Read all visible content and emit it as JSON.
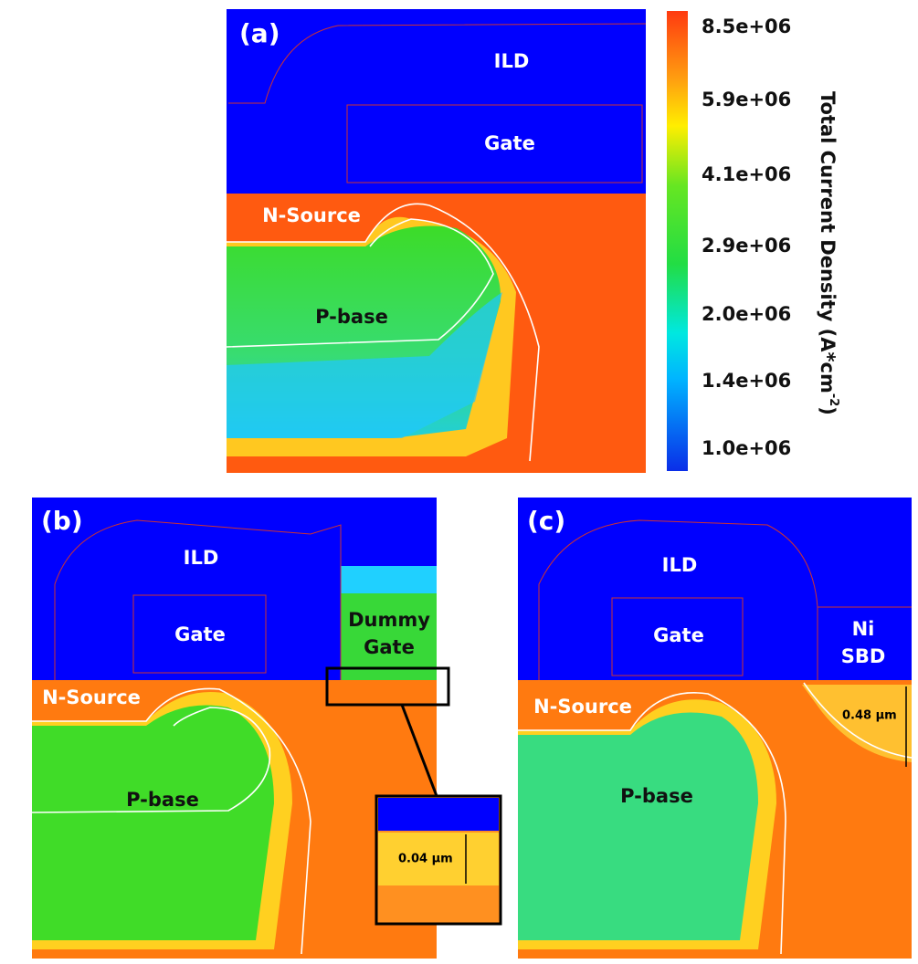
{
  "panels": [
    {
      "label": "(a)",
      "ild": "ILD",
      "gate": "Gate",
      "source": "N-Source",
      "base": "P-base"
    },
    {
      "label": "(b)",
      "ild": "ILD",
      "gate": "Gate",
      "extra": [
        "Dummy",
        "Gate"
      ],
      "source": "N-Source",
      "base": "P-base",
      "dimension": "0.04 μm"
    },
    {
      "label": "(c)",
      "ild": "ILD",
      "gate": "Gate",
      "extra": [
        "Ni",
        "SBD"
      ],
      "source": "N-Source",
      "base": "P-base",
      "dimension": "0.48 μm"
    }
  ],
  "colorbar": {
    "title": "Total Current Density (A*cm",
    "title_superscript": "-2",
    "title_end": ")",
    "tick_labels": [
      "8.5e+06",
      "5.9e+06",
      "4.1e+06",
      "2.9e+06",
      "2.0e+06",
      "1.4e+06",
      "1.0e+06"
    ]
  }
}
